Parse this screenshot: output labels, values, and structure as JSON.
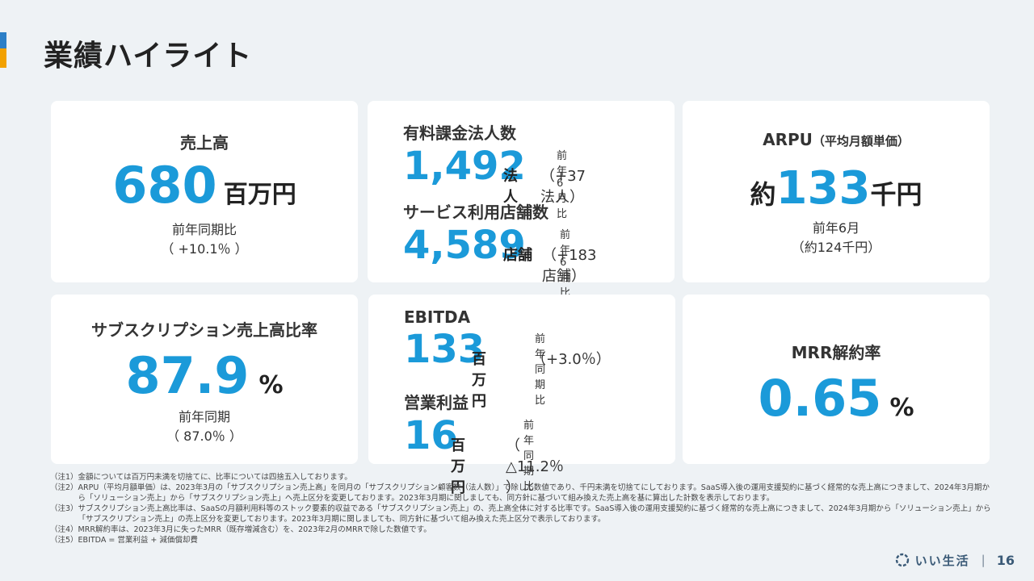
{
  "header": {
    "title": "業績ハイライト"
  },
  "cards": {
    "revenue": {
      "label": "売上高",
      "value": "680",
      "unit": "百万円",
      "compare_label": "前年同期比",
      "compare_value": "（ +10.1％ ）"
    },
    "customers": {
      "corp_label": "有料課金法人数",
      "corp_value": "1,492",
      "corp_unit": "法人",
      "corp_compare_label": "前年6月比",
      "corp_compare_value": "（+37法人）",
      "store_label": "サービス利用店舗数",
      "store_value": "4,589",
      "store_unit": "店舗",
      "store_compare_label": "前年6月比",
      "store_compare_value": "（+183店舗）"
    },
    "arpu": {
      "label": "ARPU",
      "label_sub": "（平均月額単価）",
      "prefix": "約",
      "value": "133",
      "unit": "千円",
      "compare_label": "前年6月",
      "compare_value": "（約124千円）"
    },
    "subscription_ratio": {
      "label": "サブスクリプション売上高比率",
      "value": "87.9",
      "unit": "%",
      "compare_label": "前年同期",
      "compare_value": "（ 87.0％ ）"
    },
    "profit": {
      "ebitda_label": "EBITDA",
      "ebitda_value": "133",
      "ebitda_unit": "百万円",
      "ebitda_compare_label": "前年同期比",
      "ebitda_compare_value": "（+3.0％）",
      "op_label": "営業利益",
      "op_value": "16",
      "op_unit": "百万円",
      "op_compare_label": "前年同期比",
      "op_compare_value": "（ △11.2％ ）"
    },
    "mrr_churn": {
      "label": "MRR解約率",
      "value": "0.65",
      "unit": "%"
    }
  },
  "notes": [
    {
      "tag": "（注1）",
      "text": "金額については百万円未満を切捨てに、比率については四捨五入しております。"
    },
    {
      "tag": "（注2）",
      "text": "ARPU（平均月額単価）は、2023年3月の「サブスクリプション売上高」を同月の「サブスクリプション顧客数（法人数）」で除した数値であり、千円未満を切捨てにしております。SaaS導入後の運用支援契約に基づく経常的な売上高につきまして、2024年3月期から「ソリューション売上」から「サブスクリプション売上」へ売上区分を変更しております。2023年3月期に関しましても、同方針に基づいて組み換えた売上高を基に算出した計数を表示しております。"
    },
    {
      "tag": "（注3）",
      "text": "サブスクリプション売上高比率は、SaaSの月額利用料等のストック要素的収益である「サブスクリプション売上」の、売上高全体に対する比率です。SaaS導入後の運用支援契約に基づく経常的な売上高につきまして、2024年3月期から「ソリューション売上」から「サブスクリプション売上」の売上区分を変更しております。2023年3月期に関しましても、同方針に基づいて組み換えた売上区分で表示しております。"
    },
    {
      "tag": "（注4）",
      "text": "MRR解約率は、2023年3月に失ったMRR（既存増減含む）を、2023年2月のMRRで除した数値です。"
    },
    {
      "tag": "（注5）",
      "text": "EBITDA = 営業利益 + 減価償却費"
    }
  ],
  "footer": {
    "company": "いい生活",
    "separator": "|",
    "page": "16"
  },
  "colors": {
    "accent_blue": "#1b9ad9",
    "bar_blue": "#2c7fc7",
    "bar_orange": "#f2a100",
    "background": "#eef2f5"
  }
}
